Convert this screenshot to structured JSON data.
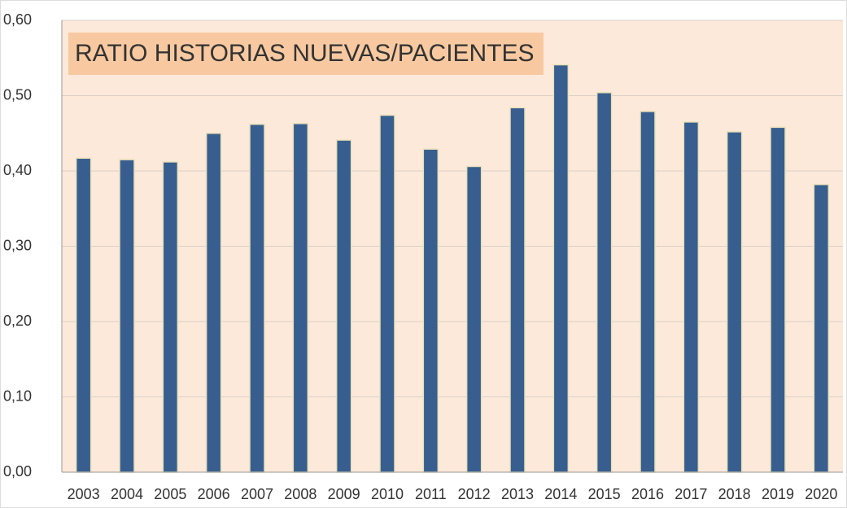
{
  "chart_data": {
    "type": "bar",
    "title": "RATIO HISTORIAS NUEVAS/PACIENTES",
    "categories": [
      "2003",
      "2004",
      "2005",
      "2006",
      "2007",
      "2008",
      "2009",
      "2010",
      "2011",
      "2012",
      "2013",
      "2014",
      "2015",
      "2016",
      "2017",
      "2018",
      "2019",
      "2020"
    ],
    "values": [
      0.417,
      0.415,
      0.412,
      0.45,
      0.462,
      0.463,
      0.441,
      0.474,
      0.429,
      0.406,
      0.484,
      0.541,
      0.504,
      0.479,
      0.465,
      0.452,
      0.458,
      0.382
    ],
    "color": "#375e8f",
    "ylim": [
      0,
      0.6
    ],
    "yticks": [
      {
        "value": 0,
        "label": "0,00"
      },
      {
        "value": 0.1,
        "label": "0,10"
      },
      {
        "value": 0.2,
        "label": "0,20"
      },
      {
        "value": 0.3,
        "label": "0,30"
      },
      {
        "value": 0.4,
        "label": "0,40"
      },
      {
        "value": 0.5,
        "label": "0,50"
      },
      {
        "value": 0.6,
        "label": "0,60"
      }
    ],
    "grid": true
  }
}
